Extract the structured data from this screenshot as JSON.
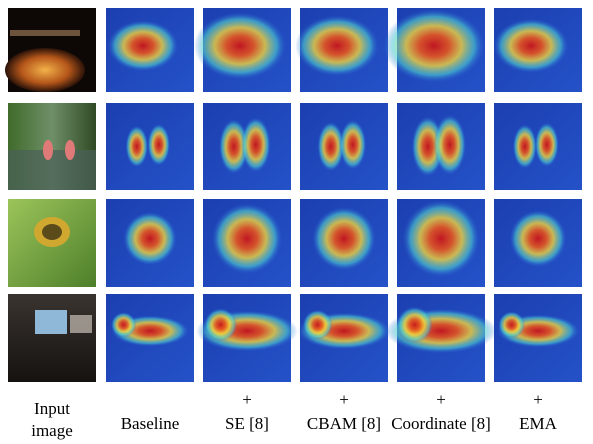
{
  "columns": [
    {
      "label": "Input image"
    },
    {
      "label": "Baseline"
    },
    {
      "plus": "+",
      "label": "SE [8]"
    },
    {
      "plus": "+",
      "label": "CBAM [8]"
    },
    {
      "plus": "+",
      "label": "Coordinate [8]"
    },
    {
      "plus": "+",
      "label": "EMA"
    }
  ]
}
